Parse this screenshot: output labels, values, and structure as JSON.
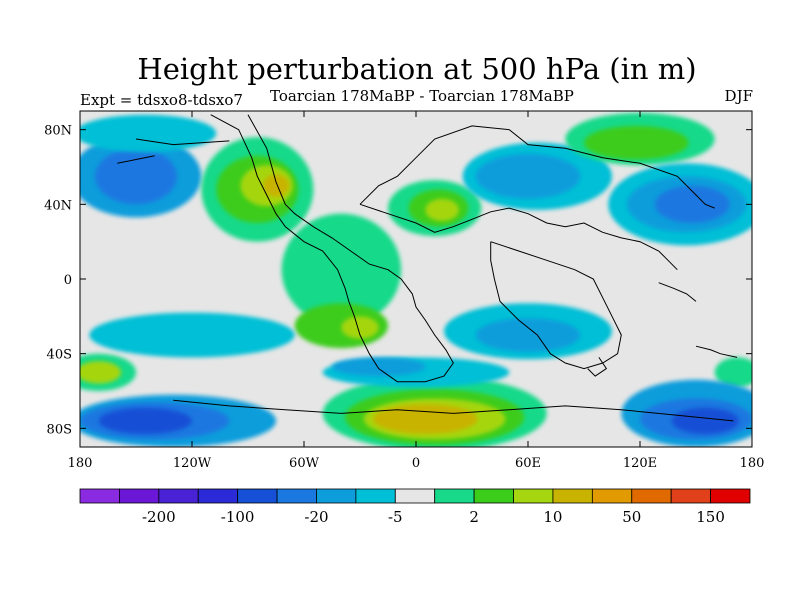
{
  "title": "Height perturbation at 500 hPa (in m)",
  "subtitle_left": "Expt = tdsxo8-tdsxo7",
  "subtitle_center": "Toarcian 178MaBP - Toarcian 178MaBP",
  "subtitle_right": "DJF",
  "map": {
    "projection": "cylindrical-equidistant",
    "lon_range": [
      -180,
      180
    ],
    "lat_range": [
      -90,
      90
    ],
    "background_color": "#e6e6e6",
    "coastline_color": "#000000",
    "lon_ticks": [
      {
        "value": -180,
        "label": "180"
      },
      {
        "value": -120,
        "label": "120W"
      },
      {
        "value": -60,
        "label": "60W"
      },
      {
        "value": 0,
        "label": "0"
      },
      {
        "value": 60,
        "label": "60E"
      },
      {
        "value": 120,
        "label": "120E"
      },
      {
        "value": 180,
        "label": "180"
      }
    ],
    "lat_ticks": [
      {
        "value": 80,
        "label": "80N"
      },
      {
        "value": 40,
        "label": "40N"
      },
      {
        "value": 0,
        "label": "0"
      },
      {
        "value": -40,
        "label": "40S"
      },
      {
        "value": -80,
        "label": "80S"
      }
    ]
  },
  "colorbar": {
    "colors": [
      "#8a2be2",
      "#6a17d8",
      "#4a22d6",
      "#2a2ad6",
      "#1550d6",
      "#1a78e0",
      "#0d9ddb",
      "#00bfd6",
      "#e6e6e6",
      "#18d98a",
      "#3ccc1a",
      "#a5d60f",
      "#c8b400",
      "#e19b00",
      "#e06a00",
      "#e0401a",
      "#e00000"
    ],
    "labels": [
      {
        "after_box": 1,
        "text": "-200"
      },
      {
        "after_box": 3,
        "text": "-100"
      },
      {
        "after_box": 5,
        "text": "-20"
      },
      {
        "after_box": 7,
        "text": "-5"
      },
      {
        "after_box": 9,
        "text": "2"
      },
      {
        "after_box": 11,
        "text": "10"
      },
      {
        "after_box": 13,
        "text": "50"
      },
      {
        "after_box": 15,
        "text": "150"
      }
    ]
  },
  "field_blobs": [
    {
      "lon": -150,
      "lat": 55,
      "rlon": 35,
      "rlat": 22,
      "color": "#0d9ddb"
    },
    {
      "lon": -150,
      "lat": 55,
      "rlon": 22,
      "rlat": 15,
      "color": "#1a78e0"
    },
    {
      "lon": -85,
      "lat": 48,
      "rlon": 30,
      "rlat": 28,
      "color": "#18d98a"
    },
    {
      "lon": -85,
      "lat": 48,
      "rlon": 22,
      "rlat": 18,
      "color": "#3ccc1a"
    },
    {
      "lon": -80,
      "lat": 50,
      "rlon": 14,
      "rlat": 11,
      "color": "#a5d60f"
    },
    {
      "lon": -75,
      "lat": 50,
      "rlon": 7,
      "rlat": 6,
      "color": "#c8b400"
    },
    {
      "lon": -145,
      "lat": 78,
      "rlon": 38,
      "rlat": 10,
      "color": "#00bfd6"
    },
    {
      "lon": 10,
      "lat": 38,
      "rlon": 25,
      "rlat": 15,
      "color": "#18d98a"
    },
    {
      "lon": 12,
      "lat": 38,
      "rlon": 16,
      "rlat": 10,
      "color": "#3ccc1a"
    },
    {
      "lon": 14,
      "lat": 37,
      "rlon": 9,
      "rlat": 6,
      "color": "#a5d60f"
    },
    {
      "lon": 65,
      "lat": 55,
      "rlon": 40,
      "rlat": 18,
      "color": "#00bfd6"
    },
    {
      "lon": 60,
      "lat": 55,
      "rlon": 28,
      "rlat": 12,
      "color": "#0d9ddb"
    },
    {
      "lon": 120,
      "lat": 75,
      "rlon": 40,
      "rlat": 14,
      "color": "#18d98a"
    },
    {
      "lon": 118,
      "lat": 73,
      "rlon": 28,
      "rlat": 9,
      "color": "#3ccc1a"
    },
    {
      "lon": 145,
      "lat": 40,
      "rlon": 42,
      "rlat": 22,
      "color": "#00bfd6"
    },
    {
      "lon": 145,
      "lat": 40,
      "rlon": 32,
      "rlat": 15,
      "color": "#0d9ddb"
    },
    {
      "lon": 148,
      "lat": 40,
      "rlon": 20,
      "rlat": 10,
      "color": "#1a78e0"
    },
    {
      "lon": -40,
      "lat": 5,
      "rlon": 32,
      "rlat": 30,
      "color": "#18d98a"
    },
    {
      "lon": -40,
      "lat": -25,
      "rlon": 25,
      "rlat": 12,
      "color": "#3ccc1a"
    },
    {
      "lon": -30,
      "lat": -26,
      "rlon": 10,
      "rlat": 6,
      "color": "#a5d60f"
    },
    {
      "lon": -120,
      "lat": -30,
      "rlon": 55,
      "rlat": 12,
      "color": "#00bfd6"
    },
    {
      "lon": 60,
      "lat": -28,
      "rlon": 45,
      "rlat": 15,
      "color": "#00bfd6"
    },
    {
      "lon": 60,
      "lat": -30,
      "rlon": 28,
      "rlat": 9,
      "color": "#0d9ddb"
    },
    {
      "lon": -170,
      "lat": -50,
      "rlon": 20,
      "rlat": 10,
      "color": "#18d98a"
    },
    {
      "lon": -170,
      "lat": -50,
      "rlon": 12,
      "rlat": 6,
      "color": "#a5d60f"
    },
    {
      "lon": 172,
      "lat": -50,
      "rlon": 12,
      "rlat": 8,
      "color": "#18d98a"
    },
    {
      "lon": -130,
      "lat": -76,
      "rlon": 55,
      "rlat": 14,
      "color": "#0d9ddb"
    },
    {
      "lon": -140,
      "lat": -76,
      "rlon": 40,
      "rlat": 10,
      "color": "#1a78e0"
    },
    {
      "lon": -145,
      "lat": -76,
      "rlon": 25,
      "rlat": 7,
      "color": "#1550d6"
    },
    {
      "lon": 10,
      "lat": -72,
      "rlon": 60,
      "rlat": 20,
      "color": "#18d98a"
    },
    {
      "lon": 10,
      "lat": -74,
      "rlon": 48,
      "rlat": 15,
      "color": "#3ccc1a"
    },
    {
      "lon": 10,
      "lat": -75,
      "rlon": 38,
      "rlat": 11,
      "color": "#a5d60f"
    },
    {
      "lon": 5,
      "lat": -75,
      "rlon": 28,
      "rlat": 8,
      "color": "#c8b400"
    },
    {
      "lon": 150,
      "lat": -72,
      "rlon": 40,
      "rlat": 18,
      "color": "#0d9ddb"
    },
    {
      "lon": 150,
      "lat": -75,
      "rlon": 30,
      "rlat": 11,
      "color": "#1a78e0"
    },
    {
      "lon": 155,
      "lat": -76,
      "rlon": 18,
      "rlat": 7,
      "color": "#1550d6"
    },
    {
      "lon": 0,
      "lat": -50,
      "rlon": 50,
      "rlat": 8,
      "color": "#00bfd6"
    },
    {
      "lon": -20,
      "lat": -47,
      "rlon": 25,
      "rlat": 5,
      "color": "#0d9ddb"
    }
  ],
  "coastlines": [
    [
      [
        -110,
        88
      ],
      [
        -95,
        80
      ],
      [
        -88,
        65
      ],
      [
        -85,
        55
      ],
      [
        -80,
        45
      ],
      [
        -75,
        35
      ],
      [
        -70,
        28
      ],
      [
        -60,
        20
      ],
      [
        -50,
        15
      ],
      [
        -42,
        5
      ],
      [
        -38,
        -5
      ],
      [
        -36,
        -12
      ],
      [
        -33,
        -20
      ],
      [
        -30,
        -30
      ],
      [
        -25,
        -40
      ],
      [
        -20,
        -48
      ],
      [
        -10,
        -55
      ],
      [
        5,
        -55
      ],
      [
        15,
        -52
      ],
      [
        20,
        -45
      ],
      [
        16,
        -38
      ],
      [
        10,
        -30
      ],
      [
        5,
        -22
      ],
      [
        0,
        -15
      ],
      [
        -2,
        -8
      ],
      [
        -8,
        0
      ],
      [
        -15,
        5
      ],
      [
        -25,
        8
      ],
      [
        -35,
        15
      ],
      [
        -45,
        22
      ],
      [
        -55,
        28
      ],
      [
        -65,
        35
      ],
      [
        -70,
        40
      ],
      [
        -75,
        52
      ],
      [
        -80,
        70
      ],
      [
        -90,
        88
      ]
    ],
    [
      [
        -30,
        40
      ],
      [
        -20,
        50
      ],
      [
        -10,
        55
      ],
      [
        0,
        65
      ],
      [
        10,
        75
      ],
      [
        30,
        82
      ],
      [
        50,
        80
      ],
      [
        60,
        72
      ],
      [
        80,
        70
      ],
      [
        100,
        65
      ],
      [
        120,
        62
      ],
      [
        140,
        55
      ],
      [
        150,
        45
      ],
      [
        155,
        40
      ],
      [
        160,
        38
      ]
    ],
    [
      [
        -30,
        40
      ],
      [
        -15,
        35
      ],
      [
        0,
        30
      ],
      [
        10,
        25
      ],
      [
        20,
        28
      ],
      [
        30,
        32
      ],
      [
        40,
        36
      ],
      [
        50,
        38
      ],
      [
        60,
        35
      ],
      [
        70,
        30
      ],
      [
        80,
        28
      ],
      [
        90,
        30
      ],
      [
        100,
        25
      ],
      [
        110,
        22
      ],
      [
        120,
        20
      ],
      [
        130,
        15
      ],
      [
        135,
        10
      ],
      [
        140,
        5
      ]
    ],
    [
      [
        40,
        20
      ],
      [
        55,
        15
      ],
      [
        70,
        10
      ],
      [
        85,
        5
      ],
      [
        95,
        0
      ],
      [
        100,
        -10
      ],
      [
        105,
        -20
      ],
      [
        110,
        -30
      ],
      [
        108,
        -40
      ],
      [
        100,
        -45
      ],
      [
        90,
        -48
      ],
      [
        80,
        -45
      ],
      [
        72,
        -40
      ],
      [
        65,
        -30
      ],
      [
        55,
        -22
      ],
      [
        45,
        -12
      ],
      [
        42,
        0
      ],
      [
        40,
        10
      ],
      [
        40,
        20
      ]
    ],
    [
      [
        130,
        -2
      ],
      [
        138,
        -5
      ],
      [
        145,
        -8
      ],
      [
        150,
        -12
      ]
    ],
    [
      [
        98,
        -42
      ],
      [
        102,
        -48
      ],
      [
        96,
        -52
      ],
      [
        92,
        -48
      ]
    ],
    [
      [
        -130,
        -65
      ],
      [
        -100,
        -68
      ],
      [
        -70,
        -70
      ],
      [
        -40,
        -72
      ],
      [
        -10,
        -70
      ],
      [
        20,
        -72
      ],
      [
        50,
        -70
      ],
      [
        80,
        -68
      ],
      [
        110,
        -70
      ],
      [
        140,
        -73
      ],
      [
        170,
        -76
      ]
    ],
    [
      [
        -150,
        75
      ],
      [
        -130,
        72
      ],
      [
        -115,
        73
      ],
      [
        -100,
        74
      ]
    ],
    [
      [
        -160,
        62
      ],
      [
        -150,
        64
      ],
      [
        -140,
        66
      ]
    ],
    [
      [
        150,
        -36
      ],
      [
        158,
        -38
      ],
      [
        163,
        -40
      ],
      [
        172,
        -42
      ]
    ]
  ]
}
